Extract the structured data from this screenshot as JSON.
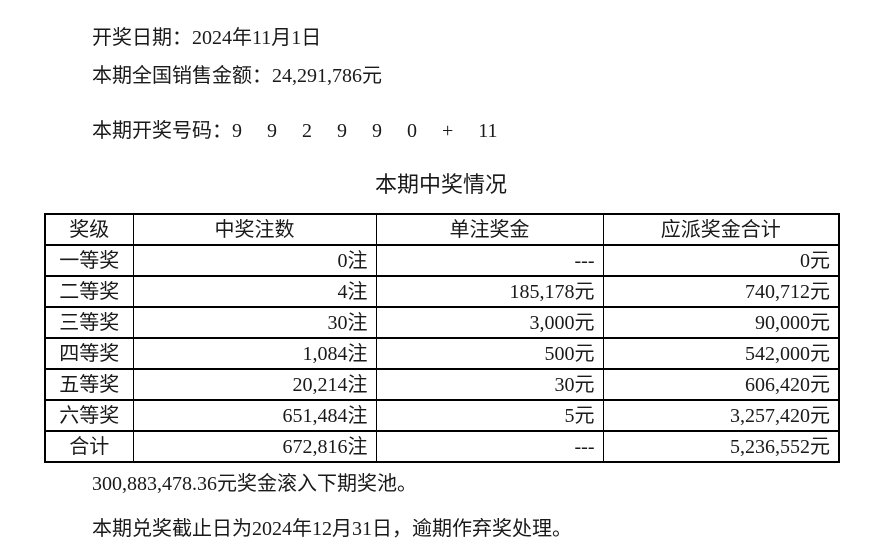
{
  "header": {
    "draw_date": "开奖日期：2024年11月1日",
    "sales_amount": "本期全国销售金额：24,291,786元",
    "draw_number_label": "本期开奖号码：",
    "draw_number": "9 9 2 9 9 0 + 11"
  },
  "table": {
    "title": "本期中奖情况",
    "columns": [
      "奖级",
      "中奖注数",
      "单注奖金",
      "应派奖金合计"
    ],
    "rows": [
      {
        "level": "一等奖",
        "count": "0注",
        "single_prize": "---",
        "total_prize": "0元"
      },
      {
        "level": "二等奖",
        "count": "4注",
        "single_prize": "185,178元",
        "total_prize": "740,712元"
      },
      {
        "level": "三等奖",
        "count": "30注",
        "single_prize": "3,000元",
        "total_prize": "90,000元"
      },
      {
        "level": "四等奖",
        "count": "1,084注",
        "single_prize": "500元",
        "total_prize": "542,000元"
      },
      {
        "level": "五等奖",
        "count": "20,214注",
        "single_prize": "30元",
        "total_prize": "606,420元"
      },
      {
        "level": "六等奖",
        "count": "651,484注",
        "single_prize": "5元",
        "total_prize": "3,257,420元"
      },
      {
        "level": "合计",
        "count": "672,816注",
        "single_prize": "---",
        "total_prize": "5,236,552元"
      }
    ]
  },
  "footer": {
    "rollover": "300,883,478.36元奖金滚入下期奖池。",
    "deadline": "本期兑奖截止日为2024年12月31日，逾期作弃奖处理。"
  }
}
